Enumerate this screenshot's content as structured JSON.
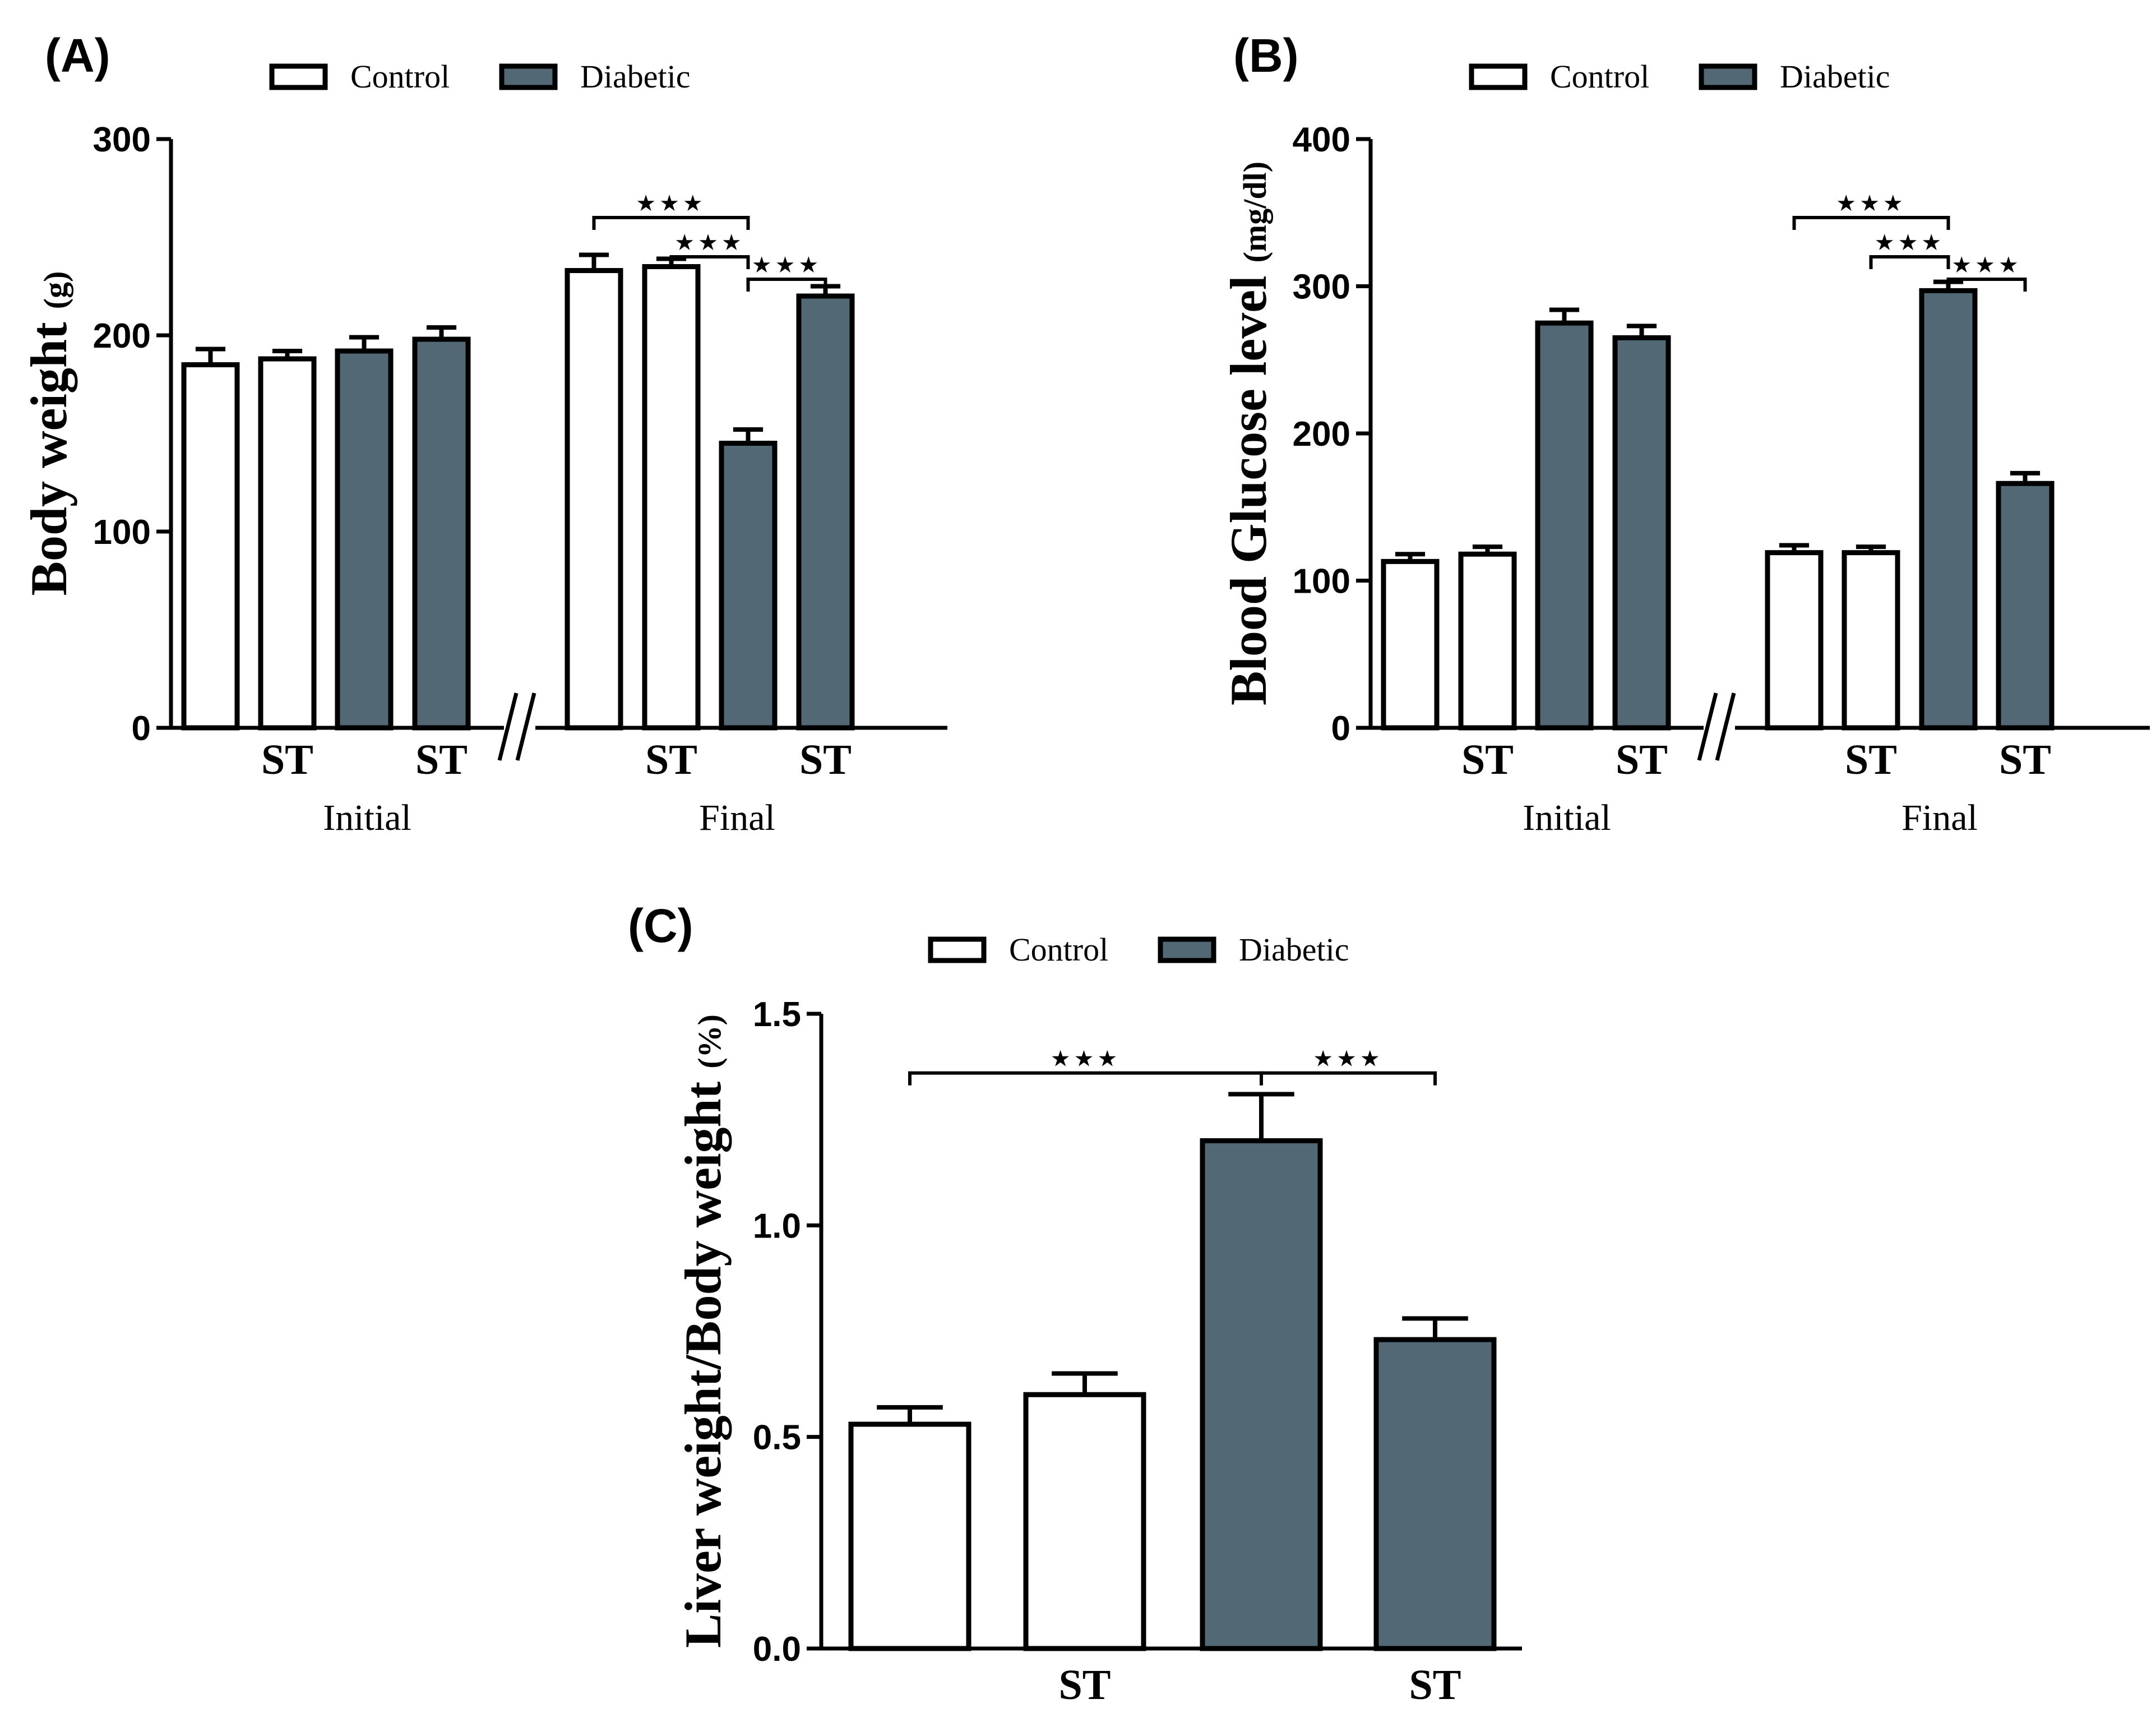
{
  "colors": {
    "control": "#ffffff",
    "diabetic": "#526875",
    "stroke": "#000000"
  },
  "chart_data": [
    {
      "panel": "(A)",
      "type": "bar",
      "legend": [
        "Control",
        "Diabetic"
      ],
      "ylabel": "Body weight",
      "ylabel_unit": "(g)",
      "ylim": [
        0,
        300
      ],
      "yticks": [
        "0",
        "100",
        "200",
        "300"
      ],
      "groups": [
        "Initial",
        "Final"
      ],
      "categories": [
        "",
        "ST",
        "",
        "ST",
        "",
        "ST",
        "",
        "ST"
      ],
      "series_of_bar": [
        "Control",
        "Control",
        "Diabetic",
        "Diabetic",
        "Control",
        "Control",
        "Diabetic",
        "Diabetic"
      ],
      "values": [
        185,
        188,
        192,
        198,
        233,
        235,
        145,
        220
      ],
      "errors": [
        8,
        4,
        7,
        6,
        8,
        4,
        7,
        5
      ],
      "significance": [
        {
          "from": 4,
          "to": 6,
          "label": "★★★"
        },
        {
          "from": 5,
          "to": 6,
          "label": "★★★"
        },
        {
          "from": 6,
          "to": 7,
          "label": "★★★"
        }
      ]
    },
    {
      "panel": "(B)",
      "type": "bar",
      "legend": [
        "Control",
        "Diabetic"
      ],
      "ylabel": "Blood Glucose level",
      "ylabel_unit": "(mg/dl)",
      "ylim": [
        0,
        400
      ],
      "yticks": [
        "0",
        "100",
        "200",
        "300",
        "400"
      ],
      "groups": [
        "Initial",
        "Final"
      ],
      "categories": [
        "",
        "ST",
        "",
        "ST",
        "",
        "ST",
        "",
        "ST"
      ],
      "series_of_bar": [
        "Control",
        "Control",
        "Diabetic",
        "Diabetic",
        "Control",
        "Control",
        "Diabetic",
        "Diabetic"
      ],
      "values": [
        113,
        118,
        275,
        265,
        119,
        119,
        297,
        166
      ],
      "errors": [
        5,
        5,
        9,
        8,
        5,
        4,
        6,
        7
      ],
      "significance": [
        {
          "from": 4,
          "to": 6,
          "label": "★★★"
        },
        {
          "from": 5,
          "to": 6,
          "label": "★★★"
        },
        {
          "from": 6,
          "to": 7,
          "label": "★★★"
        }
      ]
    },
    {
      "panel": "(C)",
      "type": "bar",
      "legend": [
        "Control",
        "Diabetic"
      ],
      "ylabel": "Liver weight/Body weight",
      "ylabel_unit": "(%)",
      "ylim": [
        0,
        1.5
      ],
      "yticks": [
        "0.0",
        "0.5",
        "1.0",
        "1.5"
      ],
      "groups": [],
      "categories": [
        "",
        "ST",
        "",
        "ST"
      ],
      "series_of_bar": [
        "Control",
        "Control",
        "Diabetic",
        "Diabetic"
      ],
      "values": [
        0.53,
        0.6,
        1.2,
        0.73
      ],
      "errors": [
        0.04,
        0.05,
        0.11,
        0.05
      ],
      "significance": [
        {
          "from": 0,
          "to": 2,
          "label": "★★★"
        },
        {
          "from": 2,
          "to": 3,
          "label": "★★★"
        }
      ]
    }
  ]
}
